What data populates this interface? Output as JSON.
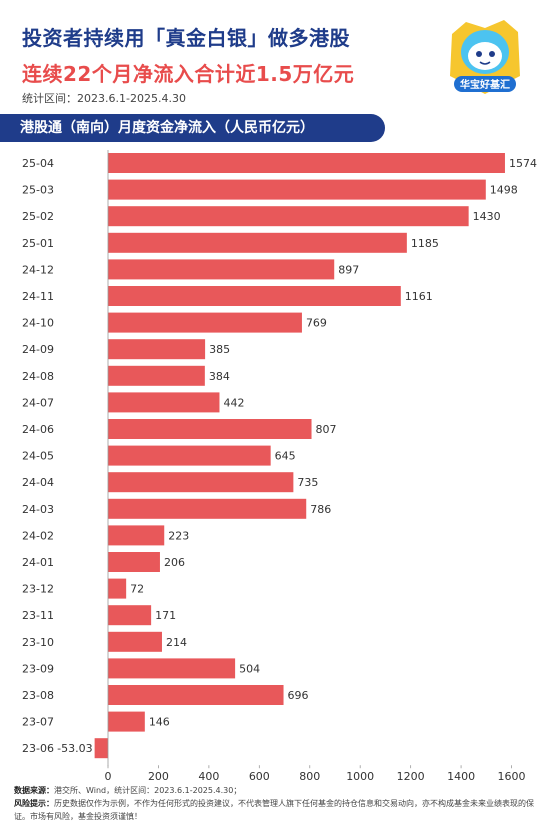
{
  "header": {
    "title_line1": "投资者持续用「真金白银」做多港股",
    "title_line2": "连续22个月净流入合计近1.5万亿元",
    "period": "统计区间：2023.6.1-2025.4.30",
    "logo_text": "华宝好基汇"
  },
  "chart_title": "港股通（南向）月度资金净流入（人民币亿元）",
  "chart_data": {
    "type": "bar",
    "orientation": "horizontal",
    "title": "港股通（南向）月度资金净流入（人民币亿元）",
    "categories": [
      "25-04",
      "25-03",
      "25-02",
      "25-01",
      "24-12",
      "24-11",
      "24-10",
      "24-09",
      "24-08",
      "24-07",
      "24-06",
      "24-05",
      "24-04",
      "24-03",
      "24-02",
      "24-01",
      "23-12",
      "23-11",
      "23-10",
      "23-09",
      "23-08",
      "23-07",
      "23-06"
    ],
    "values": [
      1574,
      1498,
      1430,
      1185,
      897,
      1161,
      769,
      385,
      384,
      442,
      807,
      645,
      735,
      786,
      223,
      206,
      72,
      171,
      214,
      504,
      696,
      146,
      -53.03
    ],
    "value_labels": [
      "1574",
      "1498",
      "1430",
      "1185",
      "897",
      "1161",
      "769",
      "385",
      "384",
      "442",
      "807",
      "645",
      "735",
      "786",
      "223",
      "206",
      "72",
      "171",
      "214",
      "504",
      "696",
      "146",
      "-53.03"
    ],
    "xlim": [
      -53.03,
      1600
    ],
    "xticks": [
      0,
      200,
      400,
      600,
      800,
      1000,
      1200,
      1400,
      1600
    ],
    "xtick_labels": [
      "0",
      "200",
      "400",
      "600",
      "800",
      "1000",
      "1200",
      "1400",
      "1600"
    ],
    "grid": false,
    "bar_color": "#e8585a"
  },
  "footer": {
    "source_label": "数据来源：",
    "source_text": "港交所、Wind，统计区间：2023.6.1-2025.4.30；",
    "risk_label": "风险提示：",
    "risk_text": "历史数据仅作为示例，不作为任何形式的投资建议，不代表管理人旗下任何基金的持仓信息和交易动向，亦不构成基金未来业绩表现的保证。市场有风险，基金投资须谨慎！"
  }
}
